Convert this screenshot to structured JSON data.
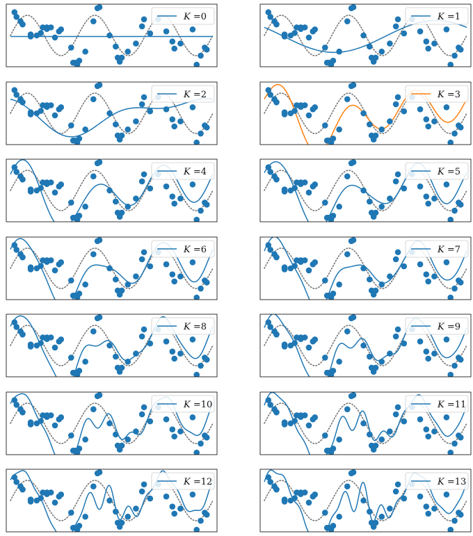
{
  "figure": {
    "layout": {
      "rows": 7,
      "cols": 2
    },
    "colors": {
      "fit": "#1f77b4",
      "highlight": "#ff7f0e",
      "points": "#1f77b4",
      "truth": "#777777"
    },
    "legend_prefix_italic": "K",
    "legend_equals": " ="
  },
  "chart_data": {
    "type": "line",
    "title": "",
    "xlabel": "",
    "ylabel": "",
    "grid": false,
    "ticks_shown": false,
    "xlim": [
      0,
      1
    ],
    "ylim": [
      -1.55,
      1.55
    ],
    "legend_placement": "top-right",
    "highlighted_K": 3,
    "true_function": "sin(2*pi*3*x) (dotted)",
    "scatter": {
      "x": [
        0.02,
        0.03,
        0.05,
        0.06,
        0.06,
        0.1,
        0.1,
        0.13,
        0.15,
        0.16,
        0.18,
        0.18,
        0.2,
        0.22,
        0.24,
        0.25,
        0.3,
        0.31,
        0.32,
        0.33,
        0.34,
        0.37,
        0.41,
        0.43,
        0.44,
        0.49,
        0.52,
        0.53,
        0.54,
        0.55,
        0.58,
        0.62,
        0.65,
        0.66,
        0.69,
        0.73,
        0.77,
        0.8,
        0.81,
        0.84,
        0.9,
        0.92,
        0.94,
        0.96,
        0.97
      ],
      "y": [
        1.15,
        0.92,
        0.7,
        0.55,
        0.55,
        0.05,
        -0.05,
        0.0,
        0.12,
        0.4,
        0.4,
        0.32,
        0.4,
        -0.1,
        0.2,
        0.3,
        -0.6,
        -1.35,
        -1.35,
        -1.45,
        -1.25,
        -0.8,
        0.7,
        1.35,
        1.4,
        0.0,
        -0.55,
        -1.1,
        -1.3,
        -1.1,
        -0.8,
        -0.4,
        0.45,
        0.8,
        0.1,
        0.8,
        0.2,
        -0.3,
        -0.65,
        -0.4,
        0.3,
        -1.45,
        -1.0,
        -0.6,
        -0.7
      ]
    },
    "series": [
      {
        "name": "K =0",
        "K": 0,
        "coefficients": [
          -0.05
        ]
      },
      {
        "name": "K =1",
        "K": 1,
        "coefficients": [
          -0.05,
          0.45,
          -0.65
        ]
      },
      {
        "name": "K =2",
        "K": 2,
        "coefficients": [
          -0.05,
          0.4,
          -0.65,
          0.35,
          0.15
        ]
      },
      {
        "name": "K =3",
        "K": 3,
        "coefficients": [
          -0.05,
          0.4,
          -0.55,
          0.35,
          0.2,
          0.0,
          1.0
        ]
      },
      {
        "name": "K =4",
        "K": 4,
        "coefficients": [
          -0.05,
          0.4,
          -0.55,
          0.35,
          0.2,
          0.0,
          1.0,
          0.1,
          0.1
        ]
      },
      {
        "name": "K =5",
        "K": 5,
        "coefficients": [
          -0.05,
          0.4,
          -0.55,
          0.35,
          0.2,
          0.0,
          1.0,
          0.1,
          0.1,
          0.08,
          -0.08
        ]
      },
      {
        "name": "K =6",
        "K": 6,
        "coefficients": [
          -0.05,
          0.4,
          -0.55,
          0.35,
          0.2,
          0.0,
          1.0,
          0.1,
          0.1,
          0.08,
          -0.08,
          0.06,
          0.08
        ]
      },
      {
        "name": "K =7",
        "K": 7,
        "coefficients": [
          -0.05,
          0.4,
          -0.55,
          0.35,
          0.2,
          0.0,
          1.0,
          0.1,
          0.1,
          0.08,
          -0.08,
          0.06,
          0.08,
          -0.08,
          0.06
        ]
      },
      {
        "name": "K =8",
        "K": 8,
        "coefficients": [
          -0.05,
          0.4,
          -0.55,
          0.35,
          0.2,
          0.0,
          1.0,
          0.1,
          0.1,
          0.08,
          -0.08,
          0.06,
          0.08,
          -0.08,
          0.06,
          0.09,
          -0.05
        ]
      },
      {
        "name": "K =9",
        "K": 9,
        "coefficients": [
          -0.05,
          0.4,
          -0.55,
          0.35,
          0.2,
          0.0,
          1.0,
          0.1,
          0.1,
          0.08,
          -0.08,
          0.06,
          0.08,
          -0.08,
          0.06,
          0.09,
          -0.05,
          -0.07,
          0.08
        ]
      },
      {
        "name": "K =10",
        "K": 10,
        "coefficients": [
          -0.05,
          0.4,
          -0.55,
          0.35,
          0.2,
          0.0,
          1.0,
          0.1,
          0.1,
          0.08,
          -0.08,
          0.06,
          0.08,
          -0.08,
          0.06,
          0.09,
          -0.05,
          -0.07,
          0.08,
          0.1,
          -0.09
        ]
      },
      {
        "name": "K =11",
        "K": 11,
        "coefficients": [
          -0.05,
          0.4,
          -0.55,
          0.35,
          0.2,
          0.0,
          1.0,
          0.1,
          0.1,
          0.08,
          -0.08,
          0.06,
          0.08,
          -0.08,
          0.06,
          0.09,
          -0.05,
          -0.07,
          0.08,
          0.1,
          -0.09,
          -0.08,
          0.11
        ]
      },
      {
        "name": "K =12",
        "K": 12,
        "coefficients": [
          -0.05,
          0.4,
          -0.55,
          0.35,
          0.2,
          0.0,
          1.0,
          0.1,
          0.1,
          0.08,
          -0.08,
          0.06,
          0.08,
          -0.08,
          0.06,
          0.09,
          -0.05,
          -0.07,
          0.08,
          0.1,
          -0.09,
          -0.08,
          0.11,
          0.12,
          -0.09
        ]
      },
      {
        "name": "K =13",
        "K": 13,
        "coefficients": [
          -0.05,
          0.4,
          -0.55,
          0.35,
          0.2,
          0.0,
          1.0,
          0.1,
          0.1,
          0.08,
          -0.08,
          0.06,
          0.08,
          -0.08,
          0.06,
          0.09,
          -0.05,
          -0.07,
          0.08,
          0.1,
          -0.09,
          -0.08,
          0.11,
          0.12,
          -0.09,
          -0.1,
          0.12
        ]
      }
    ]
  }
}
